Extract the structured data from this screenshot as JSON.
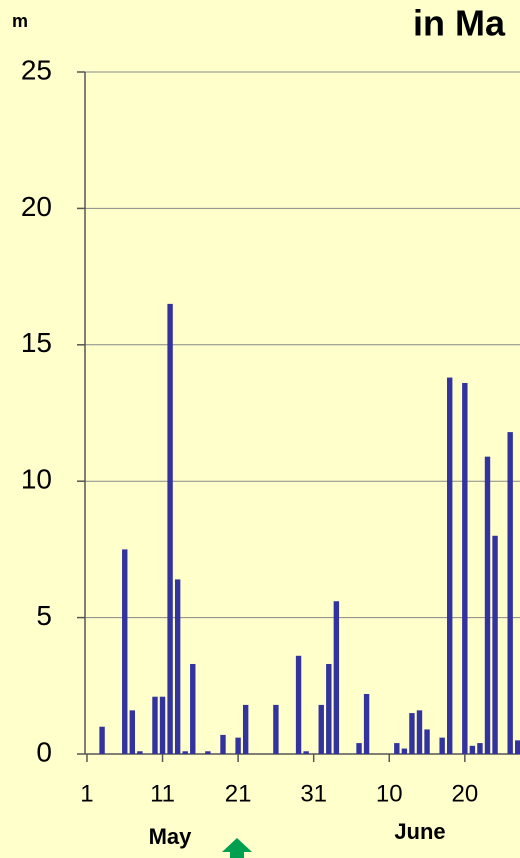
{
  "chart_data": {
    "type": "bar",
    "title": "in Ma",
    "y_label": "m",
    "annotations": [
      "May",
      "June"
    ],
    "x": [
      3,
      6,
      7,
      8,
      10,
      11,
      12,
      13,
      14,
      15,
      17,
      19,
      21,
      22,
      26,
      29,
      30,
      32,
      33,
      34,
      37,
      38,
      42,
      43,
      44,
      45,
      46,
      48,
      49,
      51,
      52,
      53,
      54,
      55,
      57,
      58
    ],
    "values": [
      1.0,
      7.5,
      1.6,
      0.1,
      2.1,
      2.1,
      16.5,
      6.4,
      0.1,
      3.3,
      0.1,
      0.7,
      0.6,
      1.8,
      1.8,
      3.6,
      0.1,
      1.8,
      3.3,
      5.6,
      0.4,
      2.2,
      0.4,
      0.2,
      1.5,
      1.6,
      0.9,
      0.6,
      13.8,
      13.6,
      0.3,
      0.4,
      10.9,
      8.0,
      11.8,
      0.5
    ],
    "color": "#3333a0",
    "xlim": [
      0.74,
      58.3
    ],
    "xticks": [
      1,
      11,
      21,
      31,
      {
        "value": 41,
        "label": "10"
      },
      {
        "value": 51,
        "label": "20"
      }
    ],
    "ylim": [
      0,
      25
    ],
    "yticks": [
      0,
      5,
      10,
      15,
      20,
      25
    ],
    "grid": true
  }
}
